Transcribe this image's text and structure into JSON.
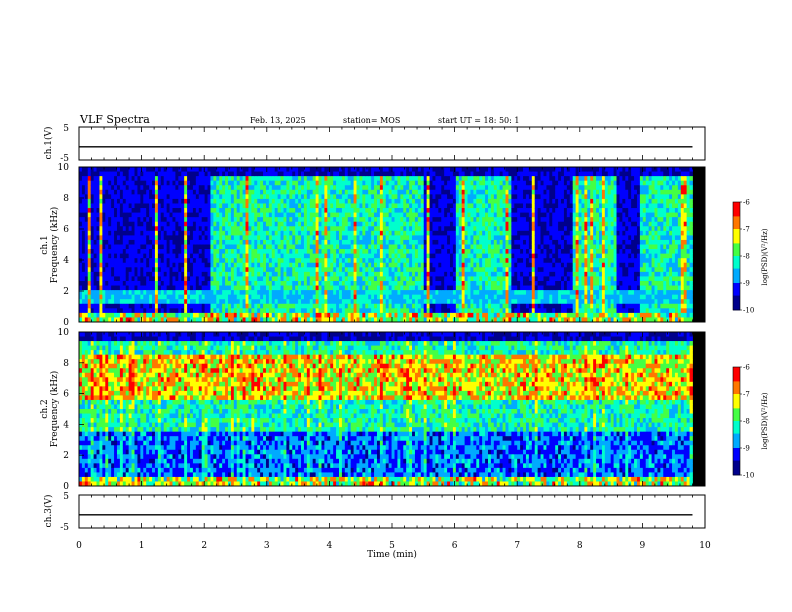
{
  "header": {
    "title": "VLF Spectra",
    "date": "Feb. 13, 2025",
    "station": "station= MOS",
    "start_ut": "start UT =  18: 50: 1"
  },
  "chart_data": [
    {
      "type": "line",
      "panel": "ch1-voltage",
      "ylabel": "ch.1(V)",
      "ylim": [
        -5,
        5
      ],
      "yticks": [
        "5",
        "-5"
      ],
      "xlim": [
        0,
        10
      ],
      "series": [
        {
          "x": [
            0,
            9.8
          ],
          "values": [
            -1,
            -1
          ]
        }
      ]
    },
    {
      "type": "heatmap",
      "panel": "ch1-spectrogram",
      "ylabel_line1": "ch.1",
      "ylabel_line2": "Frequency (kHz)",
      "ylim": [
        0,
        10
      ],
      "yticks": [
        "10",
        "8",
        "6",
        "4",
        "2",
        "0"
      ],
      "xlim": [
        0,
        10
      ],
      "data_end_min": 9.8,
      "colorbar": {
        "label": "log(PSD)(V²/Hz)",
        "range": [
          -10,
          -6
        ],
        "ticks": [
          "-6",
          "-7",
          "-8",
          "-9",
          "-10"
        ]
      },
      "quiet_intervals_min": [
        [
          0,
          2.1
        ],
        [
          5.5,
          6.0
        ],
        [
          6.9,
          7.9
        ],
        [
          8.6,
          8.95
        ]
      ]
    },
    {
      "type": "heatmap",
      "panel": "ch2-spectrogram",
      "ylabel_line1": "ch.2",
      "ylabel_line2": "Frequency (kHz)",
      "ylim": [
        0,
        10
      ],
      "yticks": [
        "10",
        "8",
        "6",
        "4",
        "2",
        "0"
      ],
      "xlim": [
        0,
        10
      ],
      "data_end_min": 9.8,
      "colorbar": {
        "label": "log(PSD)(V²/Hz)",
        "range": [
          -10,
          -6
        ],
        "ticks": [
          "-6",
          "-7",
          "-8",
          "-9",
          "-10"
        ]
      },
      "intense_band_khz": [
        5.5,
        8.5
      ]
    },
    {
      "type": "line",
      "panel": "ch3-voltage",
      "ylabel": "ch.3(V)",
      "ylim": [
        -5,
        5
      ],
      "yticks": [
        "5",
        "-5"
      ],
      "xlim": [
        0,
        10
      ],
      "xlabel": "Time (min)",
      "xticks": [
        "0",
        "1",
        "2",
        "3",
        "4",
        "5",
        "6",
        "7",
        "8",
        "9",
        "10"
      ],
      "series": [
        {
          "x": [
            0,
            9.8
          ],
          "values": [
            -1,
            -1
          ]
        }
      ]
    }
  ],
  "colors": {
    "colormap": [
      "#00008b",
      "#0000ff",
      "#00aaff",
      "#00ffcc",
      "#44ff44",
      "#ffff00",
      "#ff7700",
      "#ff0000",
      "#ffffff"
    ],
    "background": "#000000"
  }
}
